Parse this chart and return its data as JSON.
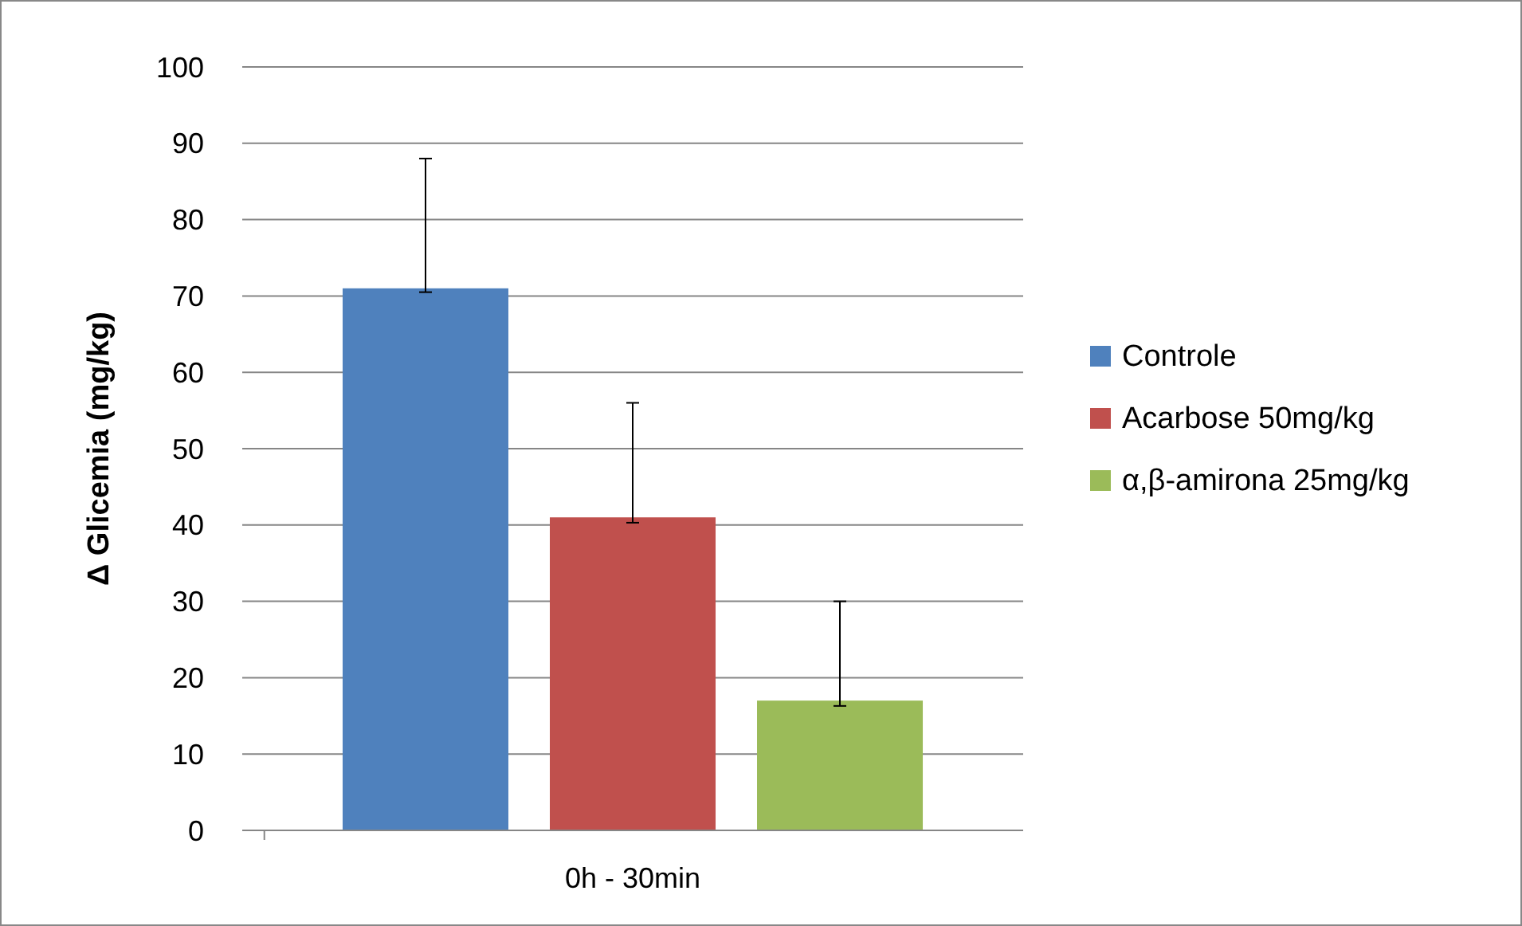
{
  "chart_data": {
    "type": "bar",
    "ylabel": "Δ Glicemia (mg/kg)",
    "categories": [
      "0h - 30min"
    ],
    "series": [
      {
        "name": "Controle",
        "color": "#4f81bd",
        "values": [
          71
        ],
        "errors": [
          [
            70.5,
            88
          ]
        ]
      },
      {
        "name": "Acarbose 50mg/kg",
        "color": "#c0504d",
        "values": [
          41
        ],
        "errors": [
          [
            40.3,
            56
          ]
        ]
      },
      {
        "name": "α,β-amirona 25mg/kg",
        "color": "#9bbb59",
        "values": [
          17
        ],
        "errors": [
          [
            16.3,
            30
          ]
        ]
      }
    ],
    "ylim": [
      0,
      100
    ],
    "yticks": [
      0,
      10,
      20,
      30,
      40,
      50,
      60,
      70,
      80,
      90,
      100
    ],
    "grid": "y",
    "legend": "right"
  }
}
